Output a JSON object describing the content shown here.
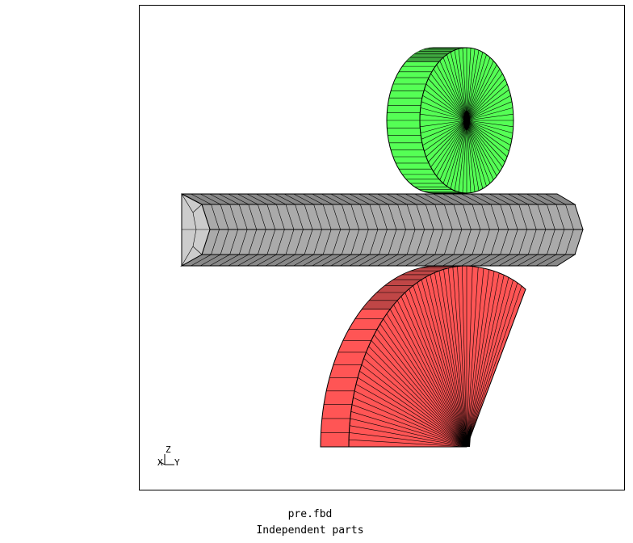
{
  "file_name": "pre.fbd",
  "subtitle": "Independent parts",
  "axes": {
    "z_label": "Z",
    "x_label": "X",
    "y_label": "Y"
  },
  "parts": [
    {
      "name": "upper-roller",
      "color": "#55ff55",
      "edge_color": "#000000"
    },
    {
      "name": "bar-stock",
      "color": "#aaaaaa",
      "edge_color": "#000000"
    },
    {
      "name": "lower-roller-sector",
      "color": "#ff5555",
      "edge_color": "#000000"
    }
  ],
  "frame_color": "#000000",
  "background": "#ffffff"
}
